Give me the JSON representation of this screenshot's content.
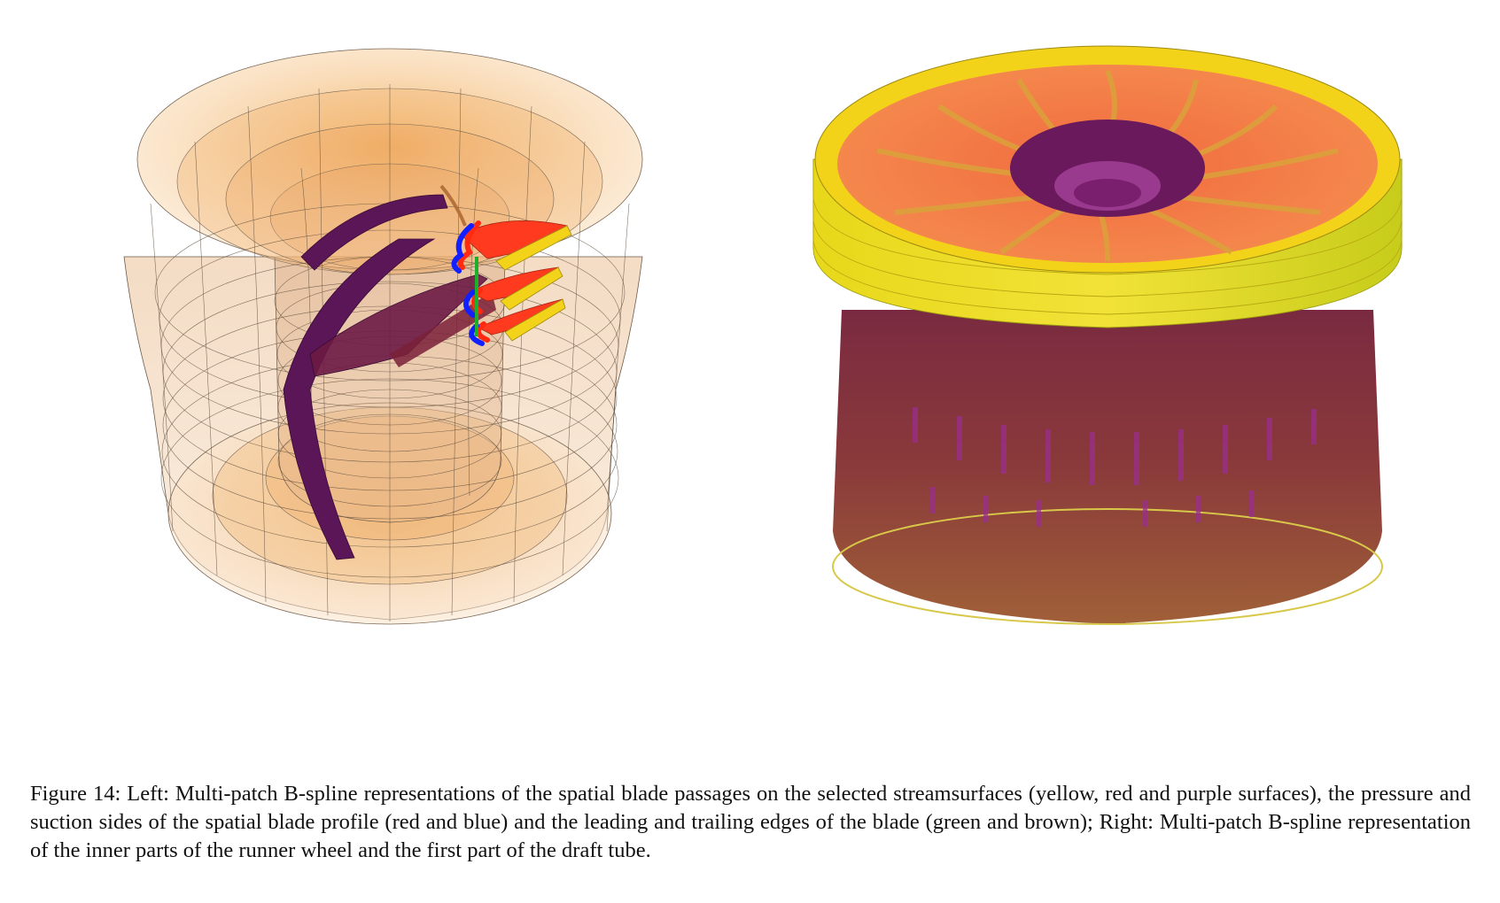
{
  "figure": {
    "left_panel_name": "multi-patch-blade-passages-figure",
    "right_panel_name": "runner-wheel-draft-tube-figure",
    "colors": {
      "yellow": "#f3d21a",
      "red": "#ff3a1e",
      "purple": "#5a1656",
      "blue": "#1220ff",
      "green": "#1fae2c",
      "brown": "#b5733b",
      "orange": "#f48a4e",
      "tan": "#f5c48f"
    }
  },
  "caption": {
    "text": "Figure 14: Left: Multi-patch B-spline representations of the spatial blade passages on the selected streamsurfaces (yellow, red and purple surfaces), the pressure and suction sides of the spatial blade profile (red and blue) and the leading and trailing edges of the blade (green and brown); Right: Multi-patch B-spline representation of the inner parts of the runner wheel and the first part of the draft tube."
  }
}
